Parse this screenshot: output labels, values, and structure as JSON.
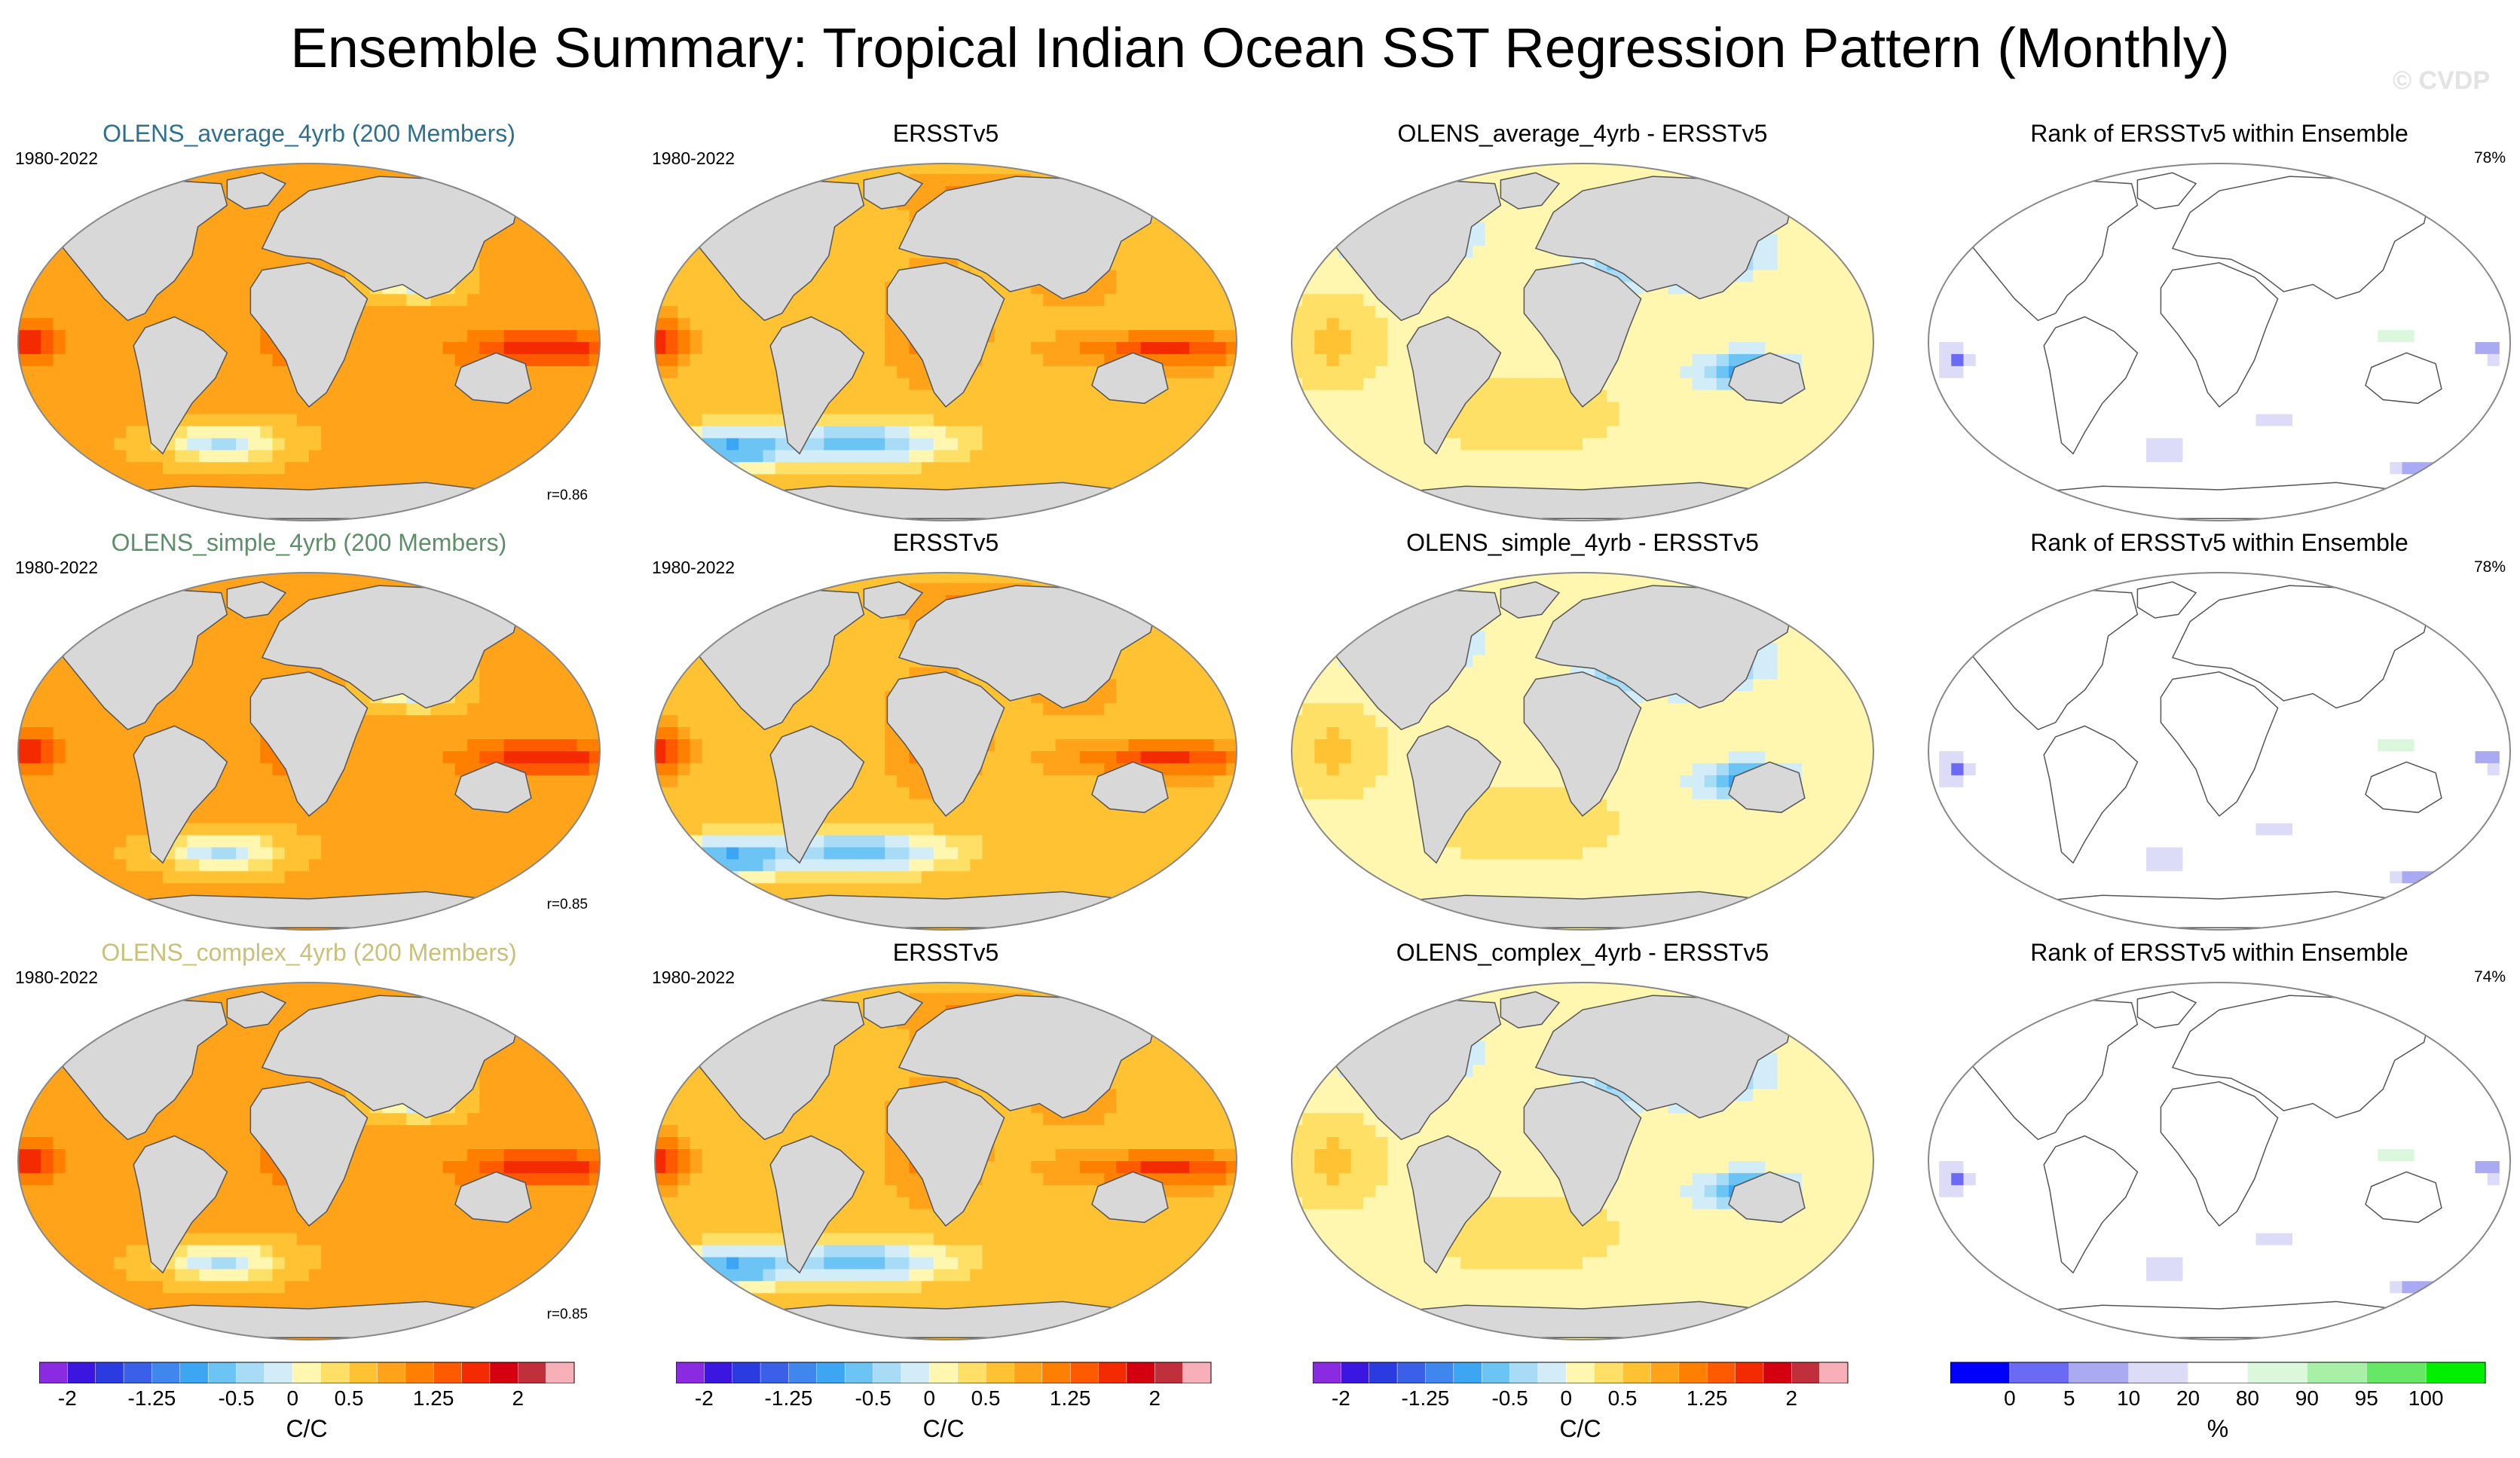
{
  "title": "Ensemble Summary: Tropical Indian Ocean SST Regression Pattern (Monthly)",
  "watermark": "© CVDP",
  "rows": [
    {
      "ensemble_label": "OLENS_average_4yrb (200 Members)",
      "ensemble_color": "#2f6f8f",
      "period": "1980-2022",
      "correlation": "r=0.86",
      "obs_label": "ERSSTv5",
      "obs_period": "1980-2022",
      "diff_label": "OLENS_average_4yrb - ERSSTv5",
      "rank_label": "Rank of ERSSTv5 within Ensemble",
      "rank_pct": "78%"
    },
    {
      "ensemble_label": "OLENS_simple_4yrb (200 Members)",
      "ensemble_color": "#5f8f6a",
      "period": "1980-2022",
      "correlation": "r=0.85",
      "obs_label": "ERSSTv5",
      "obs_period": "1980-2022",
      "diff_label": "OLENS_simple_4yrb - ERSSTv5",
      "rank_label": "Rank of ERSSTv5 within Ensemble",
      "rank_pct": "78%"
    },
    {
      "ensemble_label": "OLENS_complex_4yrb (200 Members)",
      "ensemble_color": "#c9c07a",
      "period": "1980-2022",
      "correlation": "r=0.85",
      "obs_label": "ERSSTv5",
      "obs_period": "1980-2022",
      "diff_label": "OLENS_complex_4yrb - ERSSTv5",
      "rank_label": "Rank of ERSSTv5 within Ensemble",
      "rank_pct": "74%"
    }
  ],
  "colorbars": {
    "regression": {
      "units": "C/C",
      "tick_labels": [
        "-2",
        "-1.25",
        "-0.5",
        "0",
        "0.5",
        "1.25",
        "2"
      ],
      "levels": [
        -2,
        -1.75,
        -1.5,
        -1.25,
        -1,
        -0.75,
        -0.5,
        -0.25,
        0,
        0.25,
        0.5,
        0.75,
        1,
        1.25,
        1.5,
        1.75,
        2
      ],
      "colors": [
        "#8a2be2",
        "#3a16e0",
        "#2a3be0",
        "#3a5fe8",
        "#3f86ee",
        "#3ca6f2",
        "#6cc4f4",
        "#a8dcf6",
        "#d2ecf8",
        "#fff7b0",
        "#ffe066",
        "#ffc233",
        "#ffa41a",
        "#ff8000",
        "#ff5a00",
        "#f42a00",
        "#d4000f",
        "#c0303a",
        "#f8b0b8"
      ]
    },
    "rank": {
      "units": "%",
      "tick_labels": [
        "0",
        "5",
        "10",
        "20",
        "80",
        "90",
        "95",
        "100"
      ],
      "levels": [
        0,
        5,
        10,
        20,
        80,
        90,
        95,
        100
      ],
      "colors": [
        "#0000ff",
        "#6a6af5",
        "#aaaaf2",
        "#dcdcf8",
        "#ffffff",
        "#dcf8dc",
        "#a8f0a8",
        "#66e866",
        "#00ee00"
      ]
    }
  },
  "color_keys": {
    "land": "#d8d8d8",
    "coast": "#555555"
  }
}
